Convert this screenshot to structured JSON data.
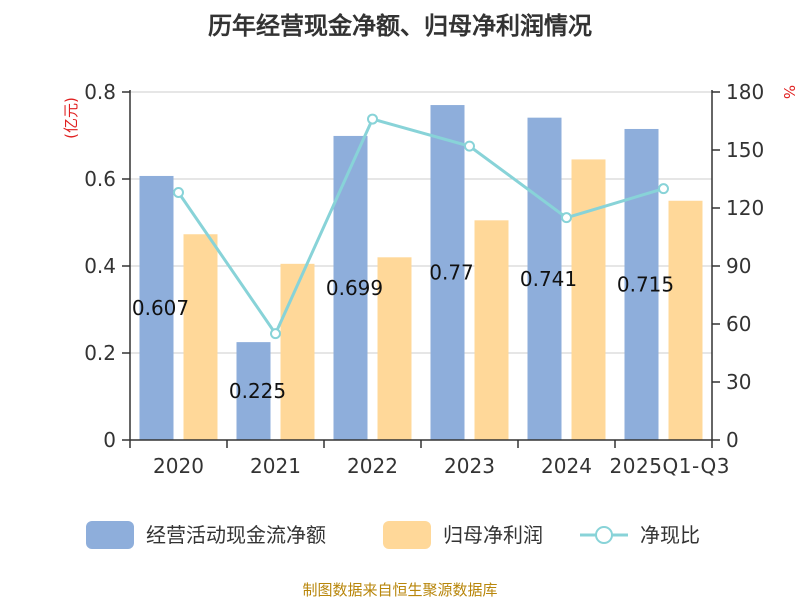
{
  "chart_data": {
    "type": "bar",
    "title": "历年经营现金净额、归母净利润情况",
    "left_unit": "(亿元)",
    "right_unit": "%",
    "categories": [
      "2020",
      "2021",
      "2022",
      "2023",
      "2024",
      "2025Q1-Q3"
    ],
    "ylim": [
      0,
      0.8
    ],
    "y_ticks": [
      "0",
      "0.2",
      "0.4",
      "0.6",
      "0.8"
    ],
    "y2lim": [
      0,
      180
    ],
    "y2_ticks": [
      "0",
      "30",
      "60",
      "90",
      "120",
      "150",
      "180"
    ],
    "grid": true,
    "legend_position": "bottom",
    "series": [
      {
        "name": "经营活动现金流净额",
        "type": "bar",
        "axis": "left",
        "color": "#8eaedb",
        "values": [
          0.607,
          0.225,
          0.699,
          0.77,
          0.741,
          0.715
        ],
        "labels": [
          "0.607",
          "0.225",
          "0.699",
          "0.77",
          "0.741",
          "0.715"
        ]
      },
      {
        "name": "归母净利润",
        "type": "bar",
        "axis": "left",
        "color": "#ffd899",
        "values": [
          0.473,
          0.405,
          0.42,
          0.505,
          0.645,
          0.55
        ]
      },
      {
        "name": "净现比",
        "type": "line",
        "axis": "right",
        "color": "#88d3d8",
        "values": [
          128,
          55,
          166,
          152,
          115,
          130
        ]
      }
    ]
  },
  "source_text": "制图数据来自恒生聚源数据库"
}
